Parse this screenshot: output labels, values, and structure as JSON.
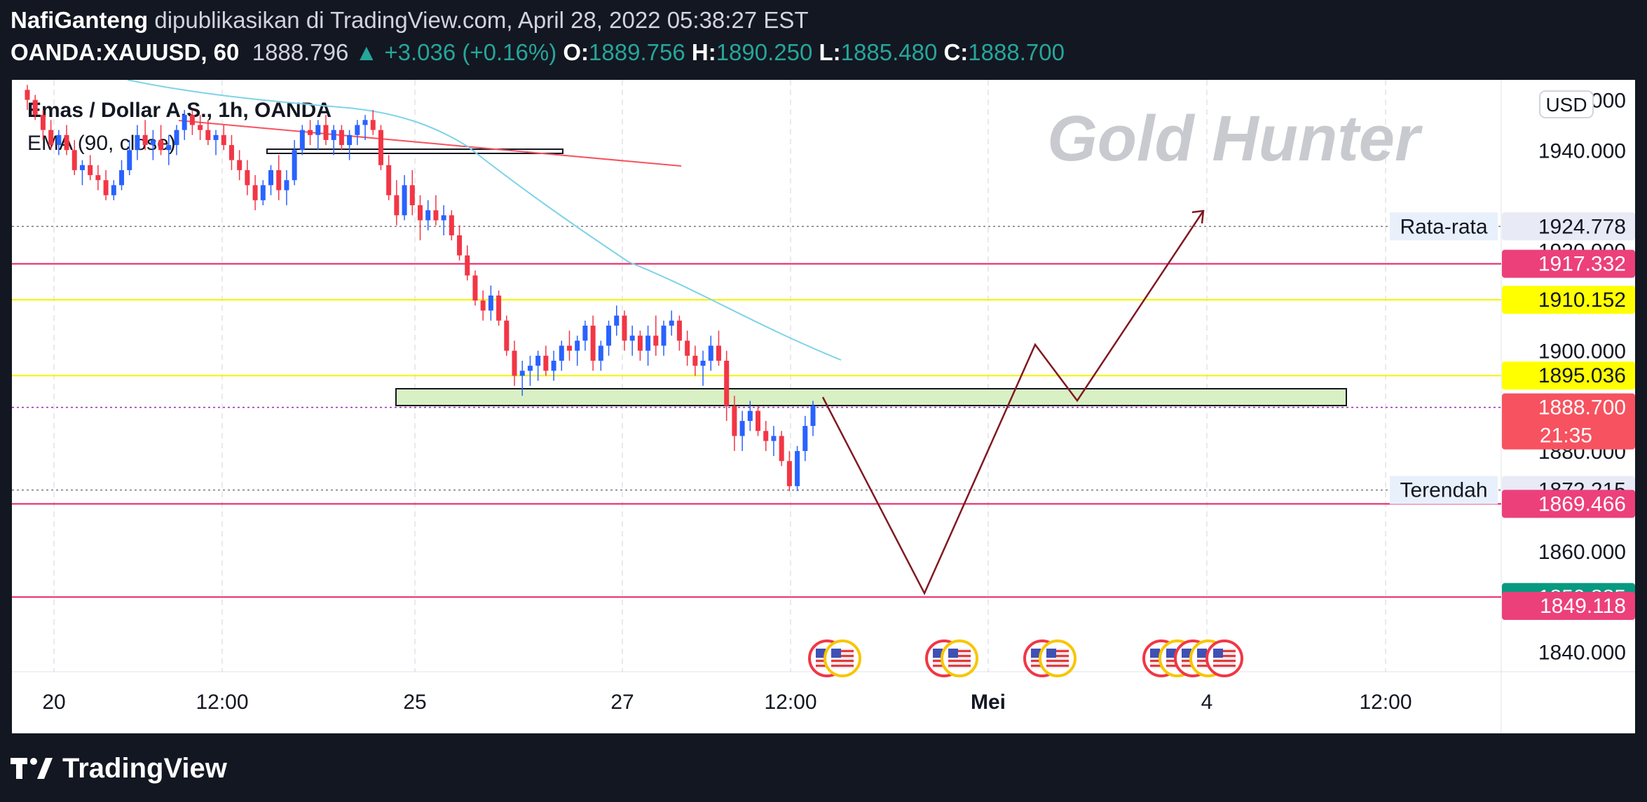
{
  "header": {
    "author": "NafiGanteng",
    "published_text": "dipublikasikan di TradingView.com, April 28, 2022 05:38:27 EST",
    "symbol": "OANDA:XAUUSD, 60",
    "last_price": "1888.796",
    "change": "▲ +3.036 (+0.16%)",
    "o_label": "O:",
    "o_value": "1889.756",
    "h_label": "H:",
    "h_value": "1890.250",
    "l_label": "L:",
    "l_value": "1885.480",
    "c_label": "C:",
    "c_value": "1888.700"
  },
  "footer": {
    "brand": "TradingView"
  },
  "chart_data": {
    "type": "candlestick",
    "title": "Emas / Dollar A.S., 1h, OANDA",
    "indicator": "EMA (90, close)",
    "watermark": "Gold Hunter",
    "currency": "USD",
    "colors": {
      "up": "#2962ff",
      "down": "#f23645",
      "ema": "#7fd3e8",
      "trend": "#f7525f",
      "projection": "#801922",
      "zone": "#d9f0c4"
    },
    "x_ticks": [
      "20",
      "12:00",
      "25",
      "27",
      "12:00",
      "Mei",
      "4",
      "12:00"
    ],
    "y_ticks": [
      "1950.000",
      "1940.000",
      "1920.000",
      "1900.000",
      "1880.000",
      "1860.000",
      "1840.000"
    ],
    "ylim": [
      1836,
      1954
    ],
    "price_labels": [
      {
        "text": "Rata-rata",
        "value": "1924.778",
        "style": "info",
        "price": 1924.778
      },
      {
        "text": "",
        "value": "1917.332",
        "style": "pink",
        "price": 1917.332
      },
      {
        "text": "",
        "value": "1910.152",
        "style": "yellow",
        "price": 1910.152
      },
      {
        "text": "",
        "value": "1895.036",
        "style": "yellow",
        "price": 1895.036
      },
      {
        "text": "",
        "value": "1888.700",
        "sub": "21:35",
        "style": "red",
        "price": 1888.7
      },
      {
        "text": "Terendah",
        "value": "1872.215",
        "style": "info",
        "price": 1872.215
      },
      {
        "text": "",
        "value": "1869.466",
        "style": "pink",
        "price": 1869.466
      },
      {
        "text": "",
        "value": "1850.885",
        "style": "teal",
        "price": 1850.885
      },
      {
        "text": "",
        "value": "1849.118",
        "style": "pink",
        "price": 1849.118
      }
    ],
    "horizontal_lines": [
      {
        "price": 1924.778,
        "color": "#787b86",
        "dash": "dotted"
      },
      {
        "price": 1917.332,
        "color": "#e91e63",
        "dash": "solid"
      },
      {
        "price": 1910.152,
        "color": "#f5f500",
        "dash": "solid"
      },
      {
        "price": 1895.036,
        "color": "#f5f500",
        "dash": "solid"
      },
      {
        "price": 1888.7,
        "color": "#9c27b0",
        "dash": "dotted"
      },
      {
        "price": 1872.215,
        "color": "#787b86",
        "dash": "dotted"
      },
      {
        "price": 1869.466,
        "color": "#e91e63",
        "dash": "solid"
      },
      {
        "price": 1850.885,
        "color": "#e91e63",
        "dash": "solid"
      }
    ],
    "candles": [
      [
        1952,
        1953,
        1948,
        1950
      ],
      [
        1950,
        1951,
        1946,
        1947
      ],
      [
        1947,
        1948,
        1942,
        1944
      ],
      [
        1944,
        1946,
        1940,
        1941
      ],
      [
        1941,
        1944,
        1939,
        1943
      ],
      [
        1943,
        1945,
        1939,
        1940
      ],
      [
        1940,
        1942,
        1935,
        1936
      ],
      [
        1936,
        1938,
        1933,
        1937
      ],
      [
        1937,
        1939,
        1934,
        1935
      ],
      [
        1935,
        1937,
        1932,
        1934
      ],
      [
        1934,
        1936,
        1930,
        1931
      ],
      [
        1931,
        1934,
        1930,
        1933
      ],
      [
        1933,
        1938,
        1932,
        1936
      ],
      [
        1936,
        1942,
        1935,
        1940
      ],
      [
        1940,
        1945,
        1938,
        1943
      ],
      [
        1943,
        1946,
        1940,
        1941
      ],
      [
        1941,
        1944,
        1938,
        1942
      ],
      [
        1942,
        1945,
        1939,
        1940
      ],
      [
        1940,
        1943,
        1937,
        1941
      ],
      [
        1941,
        1945,
        1939,
        1944
      ],
      [
        1944,
        1948,
        1942,
        1947
      ],
      [
        1947,
        1948,
        1943,
        1945
      ],
      [
        1945,
        1947,
        1942,
        1944
      ],
      [
        1944,
        1946,
        1941,
        1942
      ],
      [
        1942,
        1944,
        1939,
        1943
      ],
      [
        1943,
        1945,
        1940,
        1941
      ],
      [
        1941,
        1943,
        1936,
        1938
      ],
      [
        1938,
        1940,
        1934,
        1936
      ],
      [
        1936,
        1938,
        1931,
        1933
      ],
      [
        1933,
        1935,
        1928,
        1930
      ],
      [
        1930,
        1934,
        1929,
        1933
      ],
      [
        1933,
        1937,
        1931,
        1936
      ],
      [
        1936,
        1939,
        1930,
        1932
      ],
      [
        1932,
        1936,
        1929,
        1934
      ],
      [
        1934,
        1942,
        1933,
        1940
      ],
      [
        1940,
        1945,
        1939,
        1944
      ],
      [
        1944,
        1946,
        1941,
        1943
      ],
      [
        1943,
        1946,
        1940,
        1945
      ],
      [
        1945,
        1947,
        1941,
        1942
      ],
      [
        1942,
        1945,
        1939,
        1944
      ],
      [
        1944,
        1945,
        1940,
        1941
      ],
      [
        1941,
        1944,
        1938,
        1943
      ],
      [
        1943,
        1946,
        1941,
        1945
      ],
      [
        1945,
        1947,
        1942,
        1946
      ],
      [
        1946,
        1948,
        1943,
        1944
      ],
      [
        1944,
        1945,
        1936,
        1937
      ],
      [
        1937,
        1939,
        1930,
        1931
      ],
      [
        1931,
        1934,
        1925,
        1927
      ],
      [
        1927,
        1935,
        1926,
        1933
      ],
      [
        1933,
        1936,
        1927,
        1929
      ],
      [
        1929,
        1931,
        1922,
        1926
      ],
      [
        1926,
        1930,
        1924,
        1928
      ],
      [
        1928,
        1931,
        1925,
        1926
      ],
      [
        1926,
        1929,
        1923,
        1927
      ],
      [
        1927,
        1928,
        1922,
        1923
      ],
      [
        1923,
        1925,
        1918,
        1919
      ],
      [
        1919,
        1921,
        1914,
        1915
      ],
      [
        1915,
        1916,
        1909,
        1910
      ],
      [
        1910,
        1912,
        1906,
        1908
      ],
      [
        1908,
        1913,
        1906,
        1911
      ],
      [
        1911,
        1912,
        1905,
        1906
      ],
      [
        1906,
        1907,
        1899,
        1900
      ],
      [
        1900,
        1902,
        1893,
        1895
      ],
      [
        1895,
        1898,
        1891,
        1896
      ],
      [
        1896,
        1899,
        1893,
        1897
      ],
      [
        1897,
        1900,
        1894,
        1899
      ],
      [
        1899,
        1901,
        1895,
        1896
      ],
      [
        1896,
        1900,
        1894,
        1898
      ],
      [
        1898,
        1902,
        1896,
        1901
      ],
      [
        1901,
        1904,
        1898,
        1900
      ],
      [
        1900,
        1903,
        1897,
        1902
      ],
      [
        1902,
        1906,
        1900,
        1905
      ],
      [
        1905,
        1907,
        1896,
        1898
      ],
      [
        1898,
        1902,
        1896,
        1901
      ],
      [
        1901,
        1906,
        1899,
        1905
      ],
      [
        1905,
        1909,
        1903,
        1907
      ],
      [
        1907,
        1908,
        1900,
        1902
      ],
      [
        1902,
        1905,
        1899,
        1903
      ],
      [
        1903,
        1904,
        1898,
        1900
      ],
      [
        1900,
        1905,
        1897,
        1903
      ],
      [
        1903,
        1907,
        1899,
        1901
      ],
      [
        1901,
        1906,
        1899,
        1905
      ],
      [
        1905,
        1908,
        1903,
        1906
      ],
      [
        1906,
        1907,
        1900,
        1902
      ],
      [
        1902,
        1904,
        1897,
        1899
      ],
      [
        1899,
        1901,
        1895,
        1897
      ],
      [
        1897,
        1900,
        1893,
        1898
      ],
      [
        1898,
        1903,
        1896,
        1901
      ],
      [
        1901,
        1904,
        1897,
        1898
      ],
      [
        1898,
        1900,
        1886,
        1889
      ],
      [
        1889,
        1891,
        1880,
        1883
      ],
      [
        1883,
        1888,
        1880,
        1886
      ],
      [
        1886,
        1890,
        1884,
        1888
      ],
      [
        1888,
        1889,
        1883,
        1884
      ],
      [
        1884,
        1886,
        1880,
        1882
      ],
      [
        1882,
        1885,
        1879,
        1883
      ],
      [
        1883,
        1884,
        1877,
        1878
      ],
      [
        1878,
        1880,
        1872,
        1873
      ],
      [
        1873,
        1881,
        1872,
        1880
      ],
      [
        1880,
        1887,
        1878,
        1885
      ],
      [
        1885,
        1890,
        1883,
        1889
      ]
    ]
  }
}
